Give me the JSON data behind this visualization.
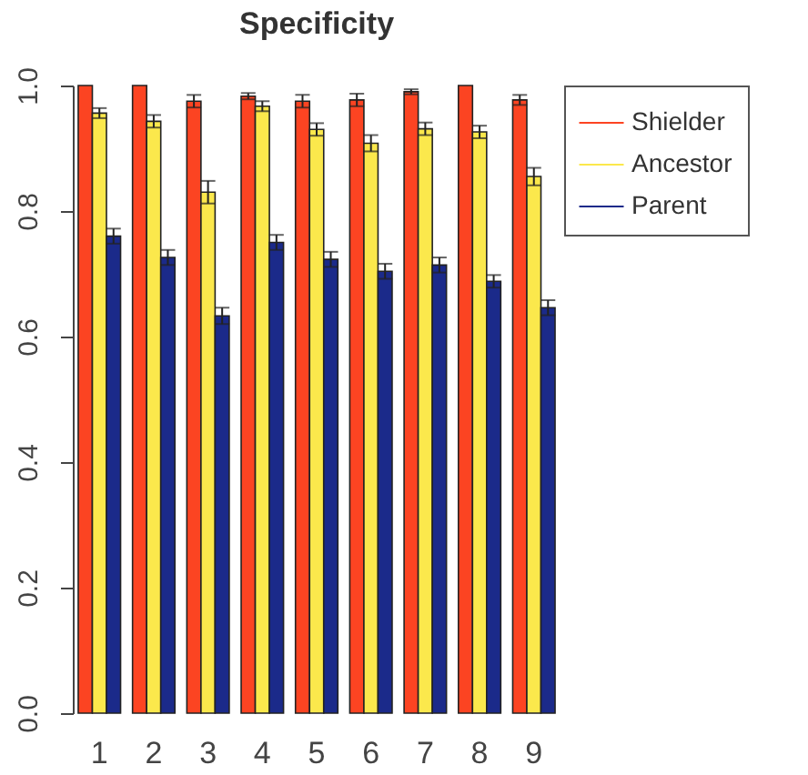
{
  "chart_data": {
    "type": "bar",
    "title": "Specificity",
    "categories": [
      "1",
      "2",
      "3",
      "4",
      "5",
      "6",
      "7",
      "8",
      "9"
    ],
    "series": [
      {
        "name": "Shielder",
        "color": "#fc4422",
        "values": [
          1.0,
          1.0,
          0.975,
          0.983,
          0.975,
          0.977,
          0.99,
          1.0,
          0.977
        ],
        "errors": [
          null,
          null,
          0.01,
          0.005,
          0.01,
          0.01,
          0.004,
          null,
          0.008
        ]
      },
      {
        "name": "Ancestor",
        "color": "#fbe84c",
        "values": [
          0.956,
          0.943,
          0.83,
          0.967,
          0.93,
          0.908,
          0.931,
          0.926,
          0.855
        ],
        "errors": [
          0.008,
          0.01,
          0.018,
          0.008,
          0.01,
          0.013,
          0.01,
          0.01,
          0.014
        ]
      },
      {
        "name": "Parent",
        "color": "#1b2a8a",
        "values": [
          0.76,
          0.726,
          0.633,
          0.75,
          0.723,
          0.704,
          0.714,
          0.688,
          0.646
        ],
        "errors": [
          0.012,
          0.012,
          0.013,
          0.012,
          0.012,
          0.012,
          0.012,
          0.01,
          0.012
        ]
      }
    ],
    "ylim": [
      0,
      1
    ],
    "yticks": [
      {
        "value": 0,
        "label": "0.0"
      },
      {
        "value": 0.2,
        "label": "0.2"
      },
      {
        "value": 0.4,
        "label": "0.4"
      },
      {
        "value": 0.6,
        "label": "0.6"
      },
      {
        "value": 0.8,
        "label": "0.8"
      },
      {
        "value": 1,
        "label": "1.0"
      }
    ],
    "grid": false,
    "legend": "top right"
  }
}
